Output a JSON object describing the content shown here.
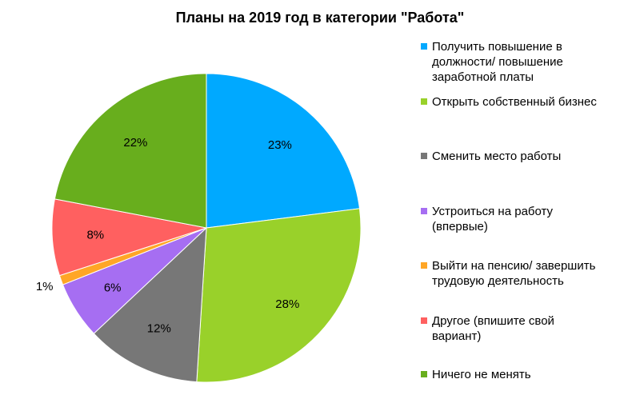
{
  "chart_data": {
    "type": "pie",
    "title": "Планы на 2019 год в категории \"Работа\"",
    "legend_position": "right",
    "slices": [
      {
        "label": "Получить повышение в должности/ повышение заработной платы",
        "value": 23,
        "data_label": "23%",
        "color": "#00A9FF"
      },
      {
        "label": "Открыть собственный бизнес",
        "value": 28,
        "data_label": "28%",
        "color": "#99D12A"
      },
      {
        "label": "Сменить место работы",
        "value": 12,
        "data_label": "12%",
        "color": "#777777"
      },
      {
        "label": "Устроиться на работу (впервые)",
        "value": 6,
        "data_label": "6%",
        "color": "#A66EF2"
      },
      {
        "label": "Выйти на пенсию/ завершить трудовую деятельность",
        "value": 1,
        "data_label": "1%",
        "color": "#FFA626"
      },
      {
        "label": "Другое (впишите свой вариант)",
        "value": 8,
        "data_label": "8%",
        "color": "#FF6060"
      },
      {
        "label": "Ничего не менять",
        "value": 22,
        "data_label": "22%",
        "color": "#68AE1D"
      }
    ]
  },
  "legend": {
    "items": [
      "Получить повышение в\nдолжности/ повышение\nзаработной платы",
      "Открыть собственный бизнес",
      "Сменить место работы",
      "Устроиться на работу\n(впервые)",
      "Выйти на пенсию/ завершить\nтрудовую деятельность",
      "Другое (впишите свой\nвариант)",
      "Ничего не менять"
    ]
  }
}
